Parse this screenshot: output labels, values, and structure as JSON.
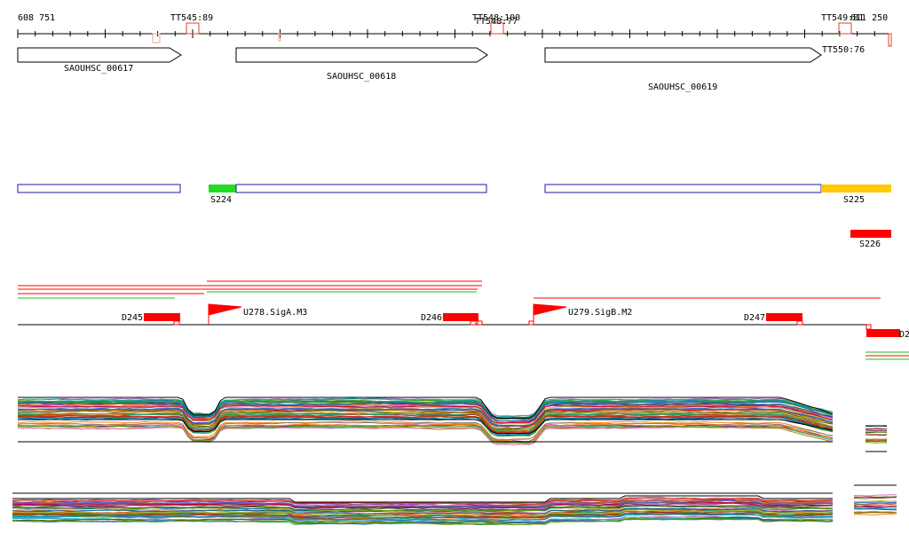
{
  "ruler": {
    "start_label": "608 751",
    "end_label": "611 250"
  },
  "terminators": {
    "tt1": "TT545:89",
    "tt2a": "TT548:100",
    "tt2b": "TT548:77",
    "tt3": "TT549:81",
    "tt4": "TT550:76"
  },
  "genes": {
    "g1": "SAOUHSC_00617",
    "g2": "SAOUHSC_00618",
    "g3": "SAOUHSC_00619"
  },
  "segments": {
    "s224": "S224",
    "s225": "S225",
    "s226": "S226"
  },
  "promoters": {
    "u278": "U278.SigA.M3",
    "u279": "U279.SigB.M2"
  },
  "downshifts": {
    "d245": "D245",
    "d246": "D246",
    "d247": "D247",
    "d248": "D2"
  },
  "colors": {
    "gene_outline": "#000000",
    "segment_outline": "#1a1aa8",
    "segment_green": "#22dd22",
    "segment_orange": "#ffc800",
    "terminator": "#dd4422",
    "feature_red": "#ff0000",
    "transcript_green": "#22bb22"
  }
}
